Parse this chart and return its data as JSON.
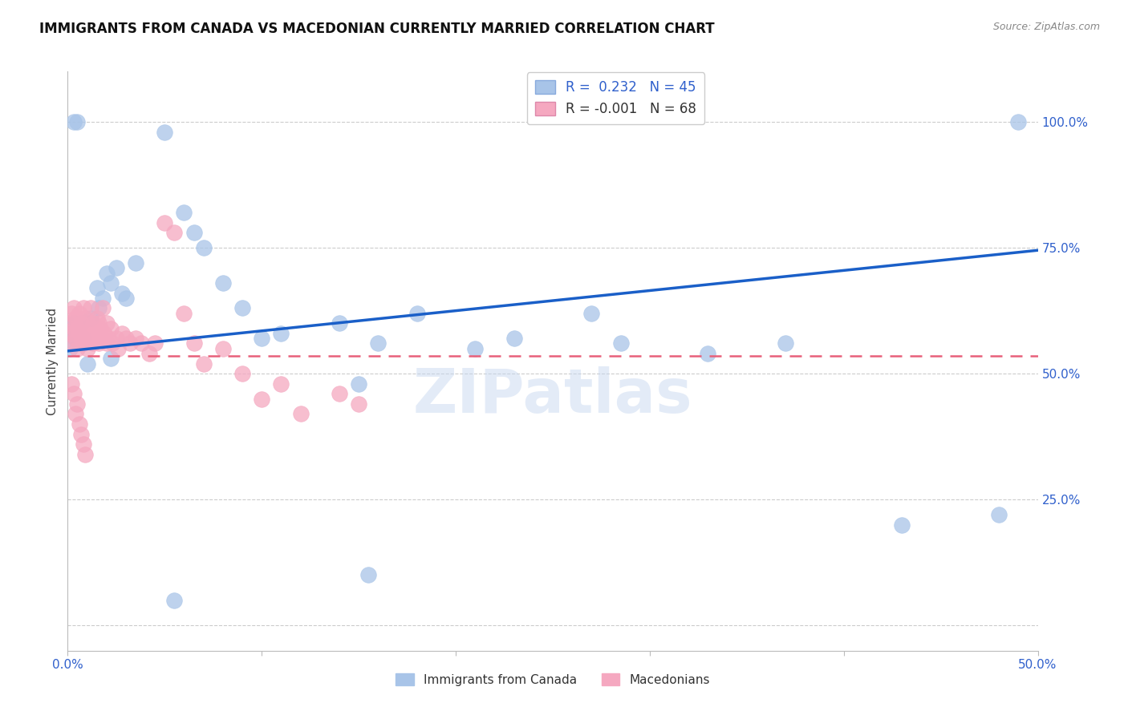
{
  "title": "IMMIGRANTS FROM CANADA VS MACEDONIAN CURRENTLY MARRIED CORRELATION CHART",
  "source": "Source: ZipAtlas.com",
  "ylabel": "Currently Married",
  "legend_entries": [
    "Immigrants from Canada",
    "Macedonians"
  ],
  "legend_r_blue": " 0.232",
  "legend_n_blue": "45",
  "legend_r_pink": "-0.001",
  "legend_n_pink": "68",
  "blue_color": "#a8c4e8",
  "pink_color": "#f5a8c0",
  "blue_line_color": "#1a5fc8",
  "pink_line_color": "#e8607a",
  "watermark": "ZIPatlas",
  "xmin": 0.0,
  "xmax": 0.5,
  "ymin": -0.05,
  "ymax": 1.1,
  "yticks": [
    0.0,
    0.25,
    0.5,
    0.75,
    1.0
  ],
  "ytick_labels": [
    "",
    "25.0%",
    "50.0%",
    "75.0%",
    "100.0%"
  ],
  "xticks": [
    0.0,
    0.1,
    0.2,
    0.3,
    0.4,
    0.5
  ],
  "xtick_labels": [
    "0.0%",
    "",
    "",
    "",
    "",
    "50.0%"
  ],
  "blue_x": [
    0.001,
    0.002,
    0.003,
    0.004,
    0.005,
    0.006,
    0.007,
    0.008,
    0.01,
    0.012,
    0.015,
    0.016,
    0.018,
    0.02,
    0.022,
    0.025,
    0.028,
    0.03,
    0.035,
    0.05,
    0.06,
    0.065,
    0.07,
    0.08,
    0.09,
    0.1,
    0.11,
    0.14,
    0.15,
    0.16,
    0.18,
    0.21,
    0.23,
    0.27,
    0.285,
    0.33,
    0.37,
    0.43,
    0.48,
    0.49,
    0.155,
    0.055,
    0.022,
    0.005,
    0.003
  ],
  "blue_y": [
    0.55,
    0.58,
    0.6,
    0.57,
    0.59,
    0.56,
    0.6,
    0.57,
    0.52,
    0.61,
    0.67,
    0.63,
    0.65,
    0.7,
    0.68,
    0.71,
    0.66,
    0.65,
    0.72,
    0.98,
    0.82,
    0.78,
    0.75,
    0.68,
    0.63,
    0.57,
    0.58,
    0.6,
    0.48,
    0.56,
    0.62,
    0.55,
    0.57,
    0.62,
    0.56,
    0.54,
    0.56,
    0.2,
    0.22,
    1.0,
    0.1,
    0.05,
    0.53,
    1.0,
    1.0
  ],
  "pink_x": [
    0.001,
    0.001,
    0.002,
    0.002,
    0.003,
    0.003,
    0.004,
    0.004,
    0.005,
    0.005,
    0.006,
    0.006,
    0.007,
    0.007,
    0.008,
    0.008,
    0.009,
    0.009,
    0.01,
    0.01,
    0.011,
    0.012,
    0.012,
    0.013,
    0.013,
    0.014,
    0.015,
    0.015,
    0.016,
    0.016,
    0.017,
    0.018,
    0.018,
    0.019,
    0.02,
    0.02,
    0.021,
    0.022,
    0.023,
    0.025,
    0.026,
    0.028,
    0.03,
    0.032,
    0.035,
    0.038,
    0.042,
    0.045,
    0.05,
    0.055,
    0.06,
    0.065,
    0.07,
    0.08,
    0.09,
    0.1,
    0.11,
    0.12,
    0.14,
    0.15,
    0.002,
    0.003,
    0.004,
    0.005,
    0.006,
    0.007,
    0.008,
    0.009
  ],
  "pink_y": [
    0.58,
    0.6,
    0.56,
    0.62,
    0.59,
    0.63,
    0.57,
    0.61,
    0.55,
    0.59,
    0.58,
    0.62,
    0.57,
    0.6,
    0.56,
    0.63,
    0.58,
    0.61,
    0.55,
    0.6,
    0.57,
    0.59,
    0.63,
    0.56,
    0.6,
    0.58,
    0.57,
    0.61,
    0.56,
    0.6,
    0.59,
    0.57,
    0.63,
    0.58,
    0.56,
    0.6,
    0.57,
    0.59,
    0.56,
    0.57,
    0.55,
    0.58,
    0.57,
    0.56,
    0.57,
    0.56,
    0.54,
    0.56,
    0.8,
    0.78,
    0.62,
    0.56,
    0.52,
    0.55,
    0.5,
    0.45,
    0.48,
    0.42,
    0.46,
    0.44,
    0.48,
    0.46,
    0.42,
    0.44,
    0.4,
    0.38,
    0.36,
    0.34
  ]
}
